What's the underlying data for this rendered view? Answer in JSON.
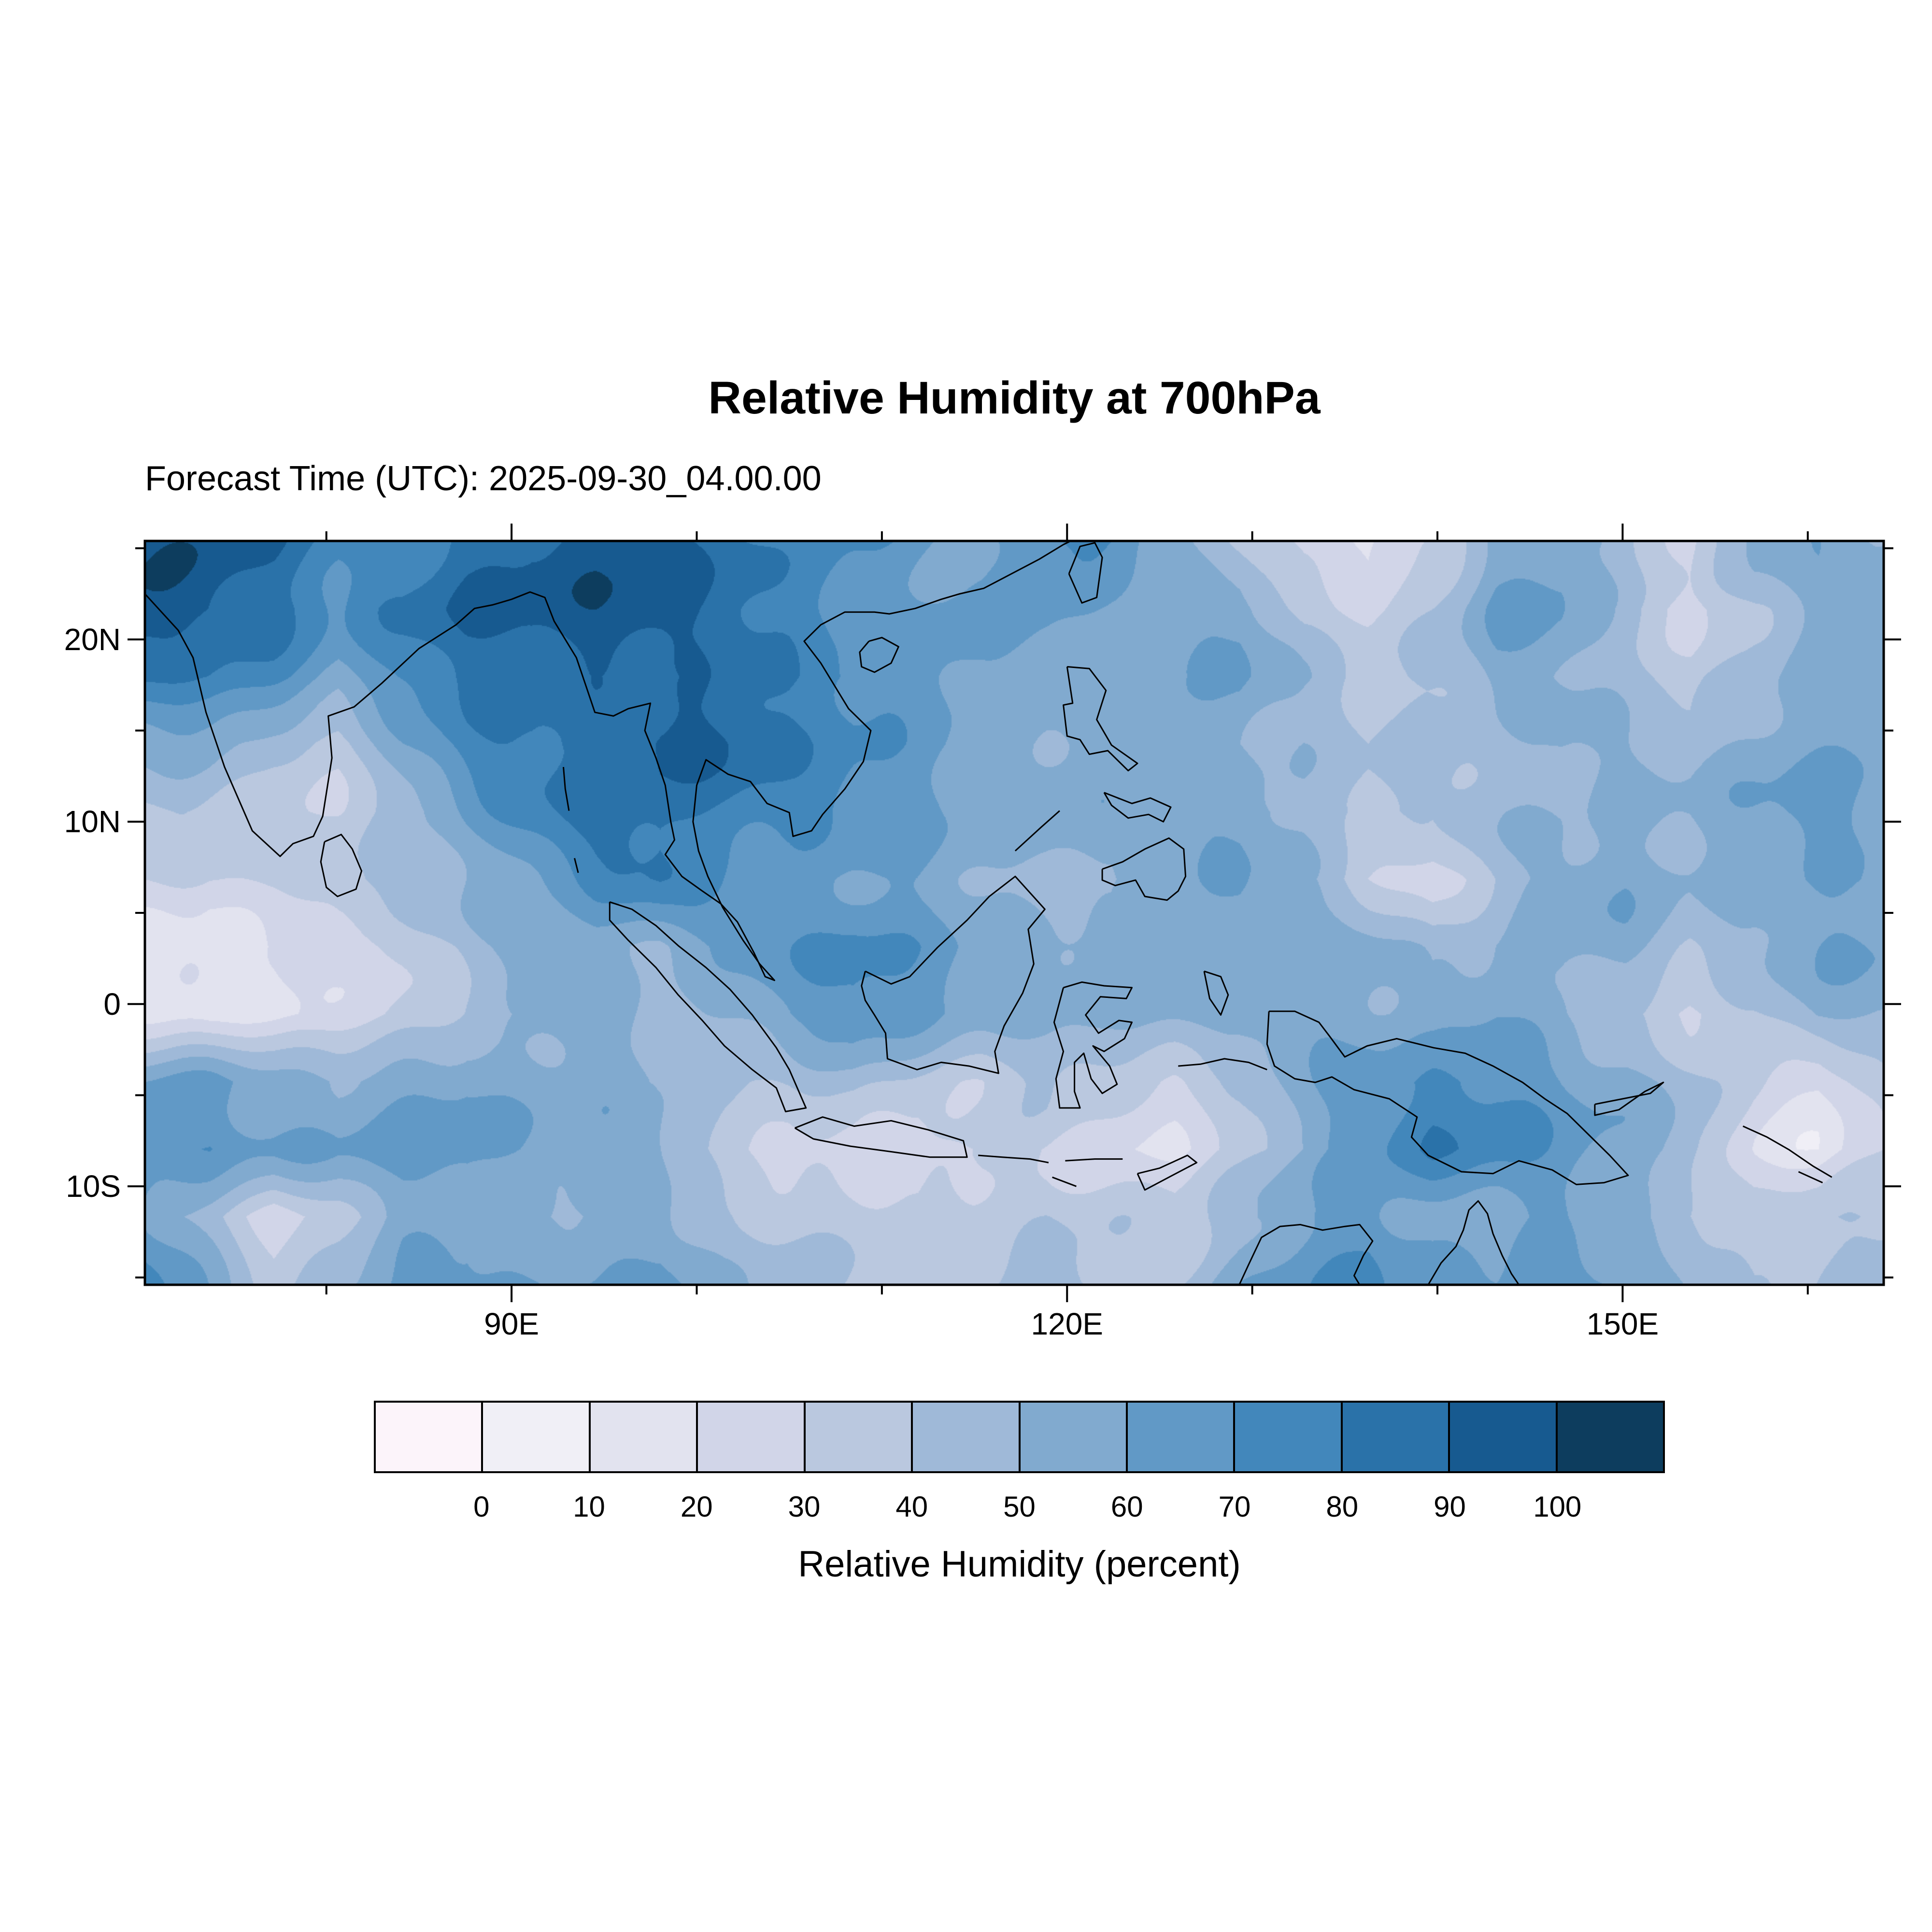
{
  "title": {
    "text": "Relative Humidity at 700hPa"
  },
  "subtitle": {
    "text": "Forecast Time (UTC): 2025-09-30_04.00.00"
  },
  "axes": {
    "x_ticks": [
      {
        "label": "90E",
        "lon": 90
      },
      {
        "label": "120E",
        "lon": 120
      },
      {
        "label": "150E",
        "lon": 150
      }
    ],
    "x_minor_lons": [
      80,
      100,
      110,
      130,
      140,
      160
    ],
    "y_ticks": [
      {
        "label": "20N",
        "lat": 20
      },
      {
        "label": "10N",
        "lat": 10
      },
      {
        "label": "0",
        "lat": 0
      },
      {
        "label": "10S",
        "lat": -10
      }
    ],
    "y_minor_lats": [
      25,
      15,
      5,
      -5,
      -15
    ]
  },
  "colorbar": {
    "tick_labels": [
      "0",
      "10",
      "20",
      "30",
      "40",
      "50",
      "60",
      "70",
      "80",
      "90",
      "100"
    ],
    "colors": [
      "#fcf4fa",
      "#f0eff6",
      "#e2e3ef",
      "#d1d5e8",
      "#bac8df",
      "#9fb9d8",
      "#81aacf",
      "#6199c6",
      "#4287bb",
      "#2a72a9",
      "#175a90",
      "#0d3d5e"
    ],
    "title": "Relative Humidity (percent)"
  },
  "chart_data": {
    "type": "heatmap",
    "title": "Relative Humidity at 700hPa",
    "forecast_time_utc": "2025-09-30_04.00.00",
    "variable": "Relative Humidity",
    "level": "700hPa",
    "units": "percent",
    "legend_position": "bottom",
    "grid": false,
    "lon_range": [
      70.2,
      164.1
    ],
    "lat_range": [
      -15.4,
      25.4
    ],
    "levels": [
      0,
      10,
      20,
      30,
      40,
      50,
      60,
      70,
      80,
      90,
      100
    ],
    "palette": [
      "#fcf4fa",
      "#f0eff6",
      "#e2e3ef",
      "#d1d5e8",
      "#bac8df",
      "#9fb9d8",
      "#81aacf",
      "#6199c6",
      "#4287bb",
      "#2a72a9",
      "#175a90",
      "#0d3d5e"
    ],
    "grid_lons": [
      70.5,
      74,
      77.5,
      81,
      84.5,
      88,
      91.5,
      95,
      98.5,
      102,
      105.5,
      109,
      112.5,
      116,
      119.5,
      123,
      126.5,
      130,
      133.5,
      137,
      140.5,
      144,
      147.5,
      151,
      154.5,
      158,
      161.5,
      164
    ],
    "grid_lats": [
      25.4,
      21.7,
      18.0,
      14.3,
      10.6,
      6.9,
      3.2,
      -0.5,
      -4.2,
      -7.9,
      -11.6,
      -15.4
    ],
    "values_percent": [
      [
        95,
        95,
        90,
        75,
        70,
        85,
        95,
        95,
        90,
        85,
        75,
        70,
        65,
        60,
        75,
        70,
        55,
        40,
        25,
        20,
        35,
        55,
        60,
        45,
        30,
        55,
        60,
        55
      ],
      [
        97,
        95,
        85,
        65,
        75,
        90,
        95,
        95,
        90,
        85,
        80,
        70,
        65,
        65,
        65,
        60,
        60,
        55,
        30,
        25,
        40,
        60,
        55,
        40,
        25,
        45,
        60,
        60
      ],
      [
        85,
        80,
        70,
        55,
        70,
        85,
        90,
        90,
        85,
        90,
        85,
        75,
        65,
        60,
        60,
        55,
        55,
        60,
        45,
        35,
        45,
        55,
        50,
        45,
        40,
        50,
        55,
        55
      ],
      [
        60,
        55,
        45,
        40,
        60,
        75,
        85,
        90,
        95,
        90,
        80,
        70,
        65,
        60,
        55,
        55,
        60,
        55,
        50,
        40,
        45,
        50,
        55,
        50,
        45,
        50,
        55,
        60
      ],
      [
        40,
        35,
        30,
        35,
        50,
        65,
        75,
        85,
        90,
        80,
        70,
        65,
        60,
        55,
        55,
        50,
        55,
        60,
        55,
        45,
        40,
        50,
        55,
        55,
        50,
        55,
        60,
        60
      ],
      [
        30,
        25,
        30,
        40,
        45,
        55,
        65,
        75,
        80,
        70,
        65,
        60,
        60,
        55,
        50,
        45,
        55,
        60,
        50,
        35,
        30,
        45,
        55,
        60,
        55,
        55,
        60,
        65
      ],
      [
        20,
        15,
        20,
        30,
        35,
        45,
        55,
        60,
        55,
        60,
        65,
        70,
        65,
        60,
        55,
        50,
        55,
        60,
        60,
        55,
        45,
        55,
        60,
        55,
        40,
        45,
        55,
        60
      ],
      [
        15,
        10,
        15,
        25,
        35,
        45,
        50,
        55,
        50,
        55,
        60,
        65,
        60,
        55,
        50,
        45,
        50,
        55,
        65,
        60,
        55,
        60,
        55,
        45,
        30,
        35,
        50,
        55
      ],
      [
        55,
        60,
        55,
        50,
        55,
        60,
        55,
        50,
        45,
        40,
        40,
        45,
        40,
        35,
        40,
        35,
        30,
        40,
        55,
        70,
        75,
        70,
        60,
        55,
        45,
        30,
        25,
        40
      ],
      [
        65,
        70,
        60,
        55,
        60,
        65,
        60,
        55,
        50,
        35,
        30,
        30,
        25,
        30,
        30,
        25,
        20,
        30,
        45,
        65,
        80,
        70,
        60,
        55,
        50,
        25,
        15,
        30
      ],
      [
        60,
        40,
        20,
        35,
        55,
        60,
        55,
        50,
        55,
        45,
        40,
        35,
        30,
        35,
        40,
        35,
        30,
        45,
        60,
        70,
        60,
        55,
        60,
        55,
        45,
        35,
        40,
        45
      ],
      [
        70,
        55,
        35,
        45,
        60,
        65,
        60,
        55,
        60,
        50,
        45,
        40,
        35,
        40,
        45,
        40,
        40,
        55,
        65,
        75,
        65,
        60,
        65,
        60,
        50,
        40,
        45,
        50
      ]
    ]
  }
}
